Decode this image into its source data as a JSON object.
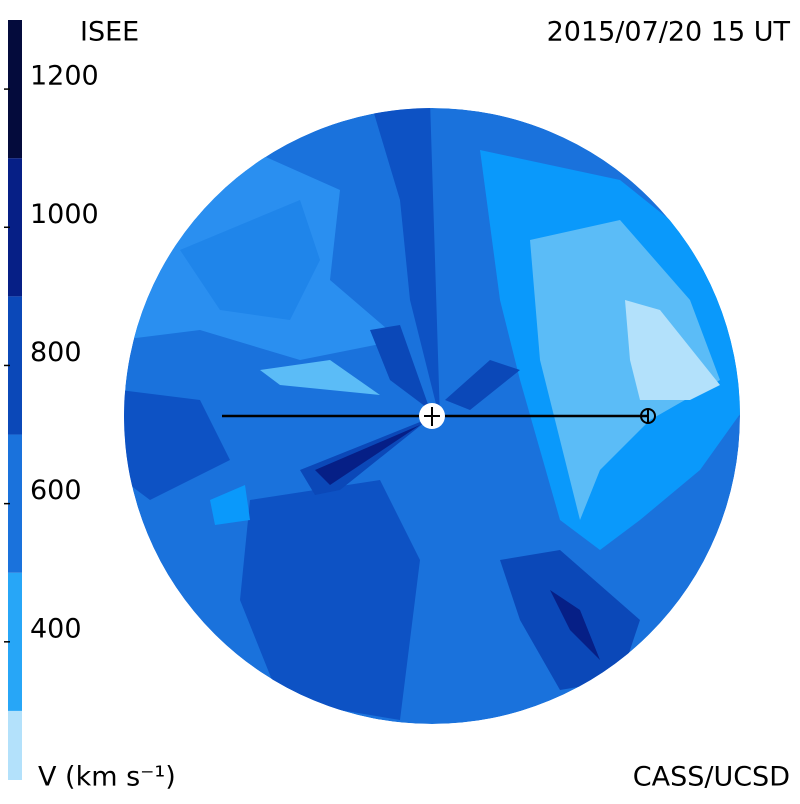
{
  "header": {
    "title": "ISEE",
    "timestamp": "2015/07/20 15 UT"
  },
  "footer": {
    "unit_label": "V (km s⁻¹)",
    "credit": "CASS/UCSD"
  },
  "colorbar": {
    "lim": [
      200,
      1300
    ],
    "ticks": [
      400,
      600,
      800,
      1000,
      1200
    ],
    "bounds": [
      200,
      300,
      500,
      700,
      900,
      1100,
      1300
    ],
    "colors": [
      "#b3e1fb",
      "#27a6f7",
      "#1a72dc",
      "#0b48b8",
      "#061f86",
      "#040b3c"
    ]
  }
}
